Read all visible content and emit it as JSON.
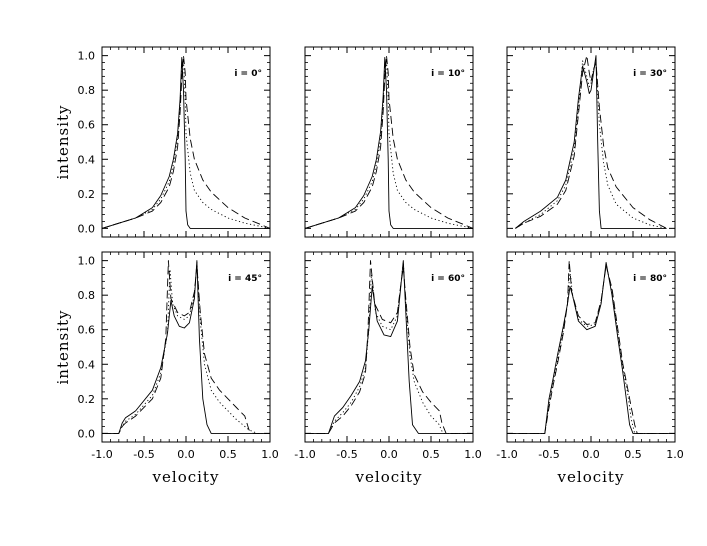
{
  "chart_data": [
    {
      "type": "line",
      "title": "i = 0°",
      "xlabel": "",
      "ylabel": "intensity",
      "xlim": [
        -1.0,
        1.0
      ],
      "ylim": [
        -0.05,
        1.05
      ],
      "x_ticks": [
        "-1.0",
        "-0.5",
        "0.0",
        "0.5",
        "1.0"
      ],
      "y_ticks": [
        "0.0",
        "0.2",
        "0.4",
        "0.6",
        "0.8",
        "1.0"
      ],
      "series": [
        {
          "style": "solid",
          "x": [
            -1.0,
            -0.8,
            -0.6,
            -0.4,
            -0.3,
            -0.2,
            -0.15,
            -0.1,
            -0.07,
            -0.05,
            -0.03,
            -0.01,
            0.0,
            0.02,
            0.05,
            0.1,
            0.3,
            1.0
          ],
          "y": [
            0.0,
            0.03,
            0.06,
            0.12,
            0.19,
            0.3,
            0.4,
            0.55,
            0.75,
            0.99,
            0.8,
            0.4,
            0.1,
            0.02,
            0.0,
            0.0,
            0.0,
            0.0
          ]
        },
        {
          "style": "dotted",
          "x": [
            -1.0,
            -0.8,
            -0.6,
            -0.4,
            -0.3,
            -0.2,
            -0.15,
            -0.1,
            -0.07,
            -0.05,
            -0.03,
            -0.01,
            0.0,
            0.05,
            0.1,
            0.2,
            0.3,
            0.5,
            0.7,
            0.9,
            1.0
          ],
          "y": [
            0.0,
            0.03,
            0.06,
            0.11,
            0.17,
            0.27,
            0.37,
            0.52,
            0.72,
            0.95,
            0.97,
            0.75,
            0.55,
            0.32,
            0.22,
            0.15,
            0.11,
            0.06,
            0.03,
            0.01,
            0.0
          ]
        },
        {
          "style": "dashed",
          "x": [
            -1.0,
            -0.8,
            -0.6,
            -0.4,
            -0.3,
            -0.2,
            -0.15,
            -0.1,
            -0.07,
            -0.05,
            -0.03,
            -0.01,
            0.0,
            0.05,
            0.1,
            0.2,
            0.3,
            0.5,
            0.7,
            0.9,
            1.0
          ],
          "y": [
            0.0,
            0.03,
            0.06,
            0.1,
            0.15,
            0.24,
            0.33,
            0.47,
            0.67,
            0.87,
            1.0,
            0.9,
            0.75,
            0.52,
            0.4,
            0.28,
            0.21,
            0.12,
            0.06,
            0.02,
            0.0
          ]
        }
      ]
    },
    {
      "type": "line",
      "title": "i = 10°",
      "xlabel": "",
      "ylabel": "",
      "xlim": [
        -1.0,
        1.0
      ],
      "ylim": [
        -0.05,
        1.05
      ],
      "x_ticks": [
        "-1.0",
        "-0.5",
        "0.0",
        "0.5",
        "1.0"
      ],
      "y_ticks": [
        "0.0",
        "0.2",
        "0.4",
        "0.6",
        "0.8",
        "1.0"
      ],
      "series": [
        {
          "style": "solid",
          "x": [
            -1.0,
            -0.8,
            -0.6,
            -0.4,
            -0.3,
            -0.2,
            -0.15,
            -0.1,
            -0.07,
            -0.05,
            -0.03,
            -0.01,
            0.0,
            0.02,
            0.05,
            0.1,
            0.3,
            1.0
          ],
          "y": [
            0.0,
            0.03,
            0.06,
            0.12,
            0.19,
            0.3,
            0.4,
            0.56,
            0.76,
            0.99,
            0.8,
            0.4,
            0.1,
            0.02,
            0.0,
            0.0,
            0.0,
            0.0
          ]
        },
        {
          "style": "dotted",
          "x": [
            -1.0,
            -0.8,
            -0.6,
            -0.4,
            -0.3,
            -0.2,
            -0.15,
            -0.1,
            -0.07,
            -0.05,
            -0.03,
            -0.01,
            0.0,
            0.05,
            0.1,
            0.2,
            0.3,
            0.5,
            0.7,
            0.9,
            1.0
          ],
          "y": [
            0.0,
            0.03,
            0.06,
            0.11,
            0.17,
            0.27,
            0.37,
            0.52,
            0.72,
            0.94,
            0.97,
            0.75,
            0.55,
            0.32,
            0.22,
            0.15,
            0.11,
            0.06,
            0.03,
            0.01,
            0.0
          ]
        },
        {
          "style": "dashed",
          "x": [
            -1.0,
            -0.8,
            -0.6,
            -0.4,
            -0.3,
            -0.2,
            -0.15,
            -0.1,
            -0.07,
            -0.05,
            -0.03,
            -0.01,
            0.0,
            0.05,
            0.1,
            0.2,
            0.3,
            0.5,
            0.7,
            0.9,
            1.0
          ],
          "y": [
            0.0,
            0.03,
            0.06,
            0.1,
            0.15,
            0.24,
            0.33,
            0.47,
            0.67,
            0.87,
            1.0,
            0.9,
            0.75,
            0.52,
            0.4,
            0.28,
            0.21,
            0.12,
            0.06,
            0.02,
            0.0
          ]
        }
      ]
    },
    {
      "type": "line",
      "title": "i = 30°",
      "xlabel": "",
      "ylabel": "",
      "xlim": [
        -1.0,
        1.0
      ],
      "ylim": [
        -0.05,
        1.05
      ],
      "x_ticks": [
        "-1.0",
        "-0.5",
        "0.0",
        "0.5",
        "1.0"
      ],
      "y_ticks": [
        "0.0",
        "0.2",
        "0.4",
        "0.6",
        "0.8",
        "1.0"
      ],
      "series": [
        {
          "style": "solid",
          "x": [
            -0.9,
            -0.8,
            -0.6,
            -0.4,
            -0.3,
            -0.2,
            -0.15,
            -0.1,
            -0.05,
            -0.02,
            0.0,
            0.03,
            0.06,
            0.08,
            0.1,
            0.12,
            0.2,
            0.5,
            0.9
          ],
          "y": [
            0.0,
            0.04,
            0.1,
            0.18,
            0.28,
            0.5,
            0.75,
            0.94,
            0.85,
            0.78,
            0.8,
            0.9,
            1.0,
            0.5,
            0.1,
            0.0,
            0.0,
            0.0,
            0.0
          ]
        },
        {
          "style": "dotted",
          "x": [
            -0.9,
            -0.8,
            -0.6,
            -0.4,
            -0.3,
            -0.2,
            -0.15,
            -0.1,
            -0.05,
            -0.02,
            0.0,
            0.03,
            0.06,
            0.1,
            0.15,
            0.2,
            0.3,
            0.5,
            0.7,
            0.9
          ],
          "y": [
            0.0,
            0.03,
            0.08,
            0.16,
            0.25,
            0.46,
            0.7,
            0.97,
            0.88,
            0.82,
            0.84,
            0.92,
            0.96,
            0.6,
            0.38,
            0.25,
            0.14,
            0.06,
            0.02,
            0.0
          ]
        },
        {
          "style": "dashed",
          "x": [
            -0.9,
            -0.8,
            -0.6,
            -0.4,
            -0.3,
            -0.2,
            -0.15,
            -0.1,
            -0.05,
            -0.02,
            0.0,
            0.03,
            0.06,
            0.1,
            0.15,
            0.2,
            0.3,
            0.5,
            0.7,
            0.9
          ],
          "y": [
            0.0,
            0.03,
            0.07,
            0.14,
            0.22,
            0.42,
            0.66,
            0.9,
            1.0,
            0.9,
            0.85,
            0.92,
            0.96,
            0.7,
            0.48,
            0.35,
            0.24,
            0.12,
            0.05,
            0.0
          ]
        }
      ]
    },
    {
      "type": "line",
      "title": "i = 45°",
      "xlabel": "velocity",
      "ylabel": "intensity",
      "xlim": [
        -1.0,
        1.0
      ],
      "ylim": [
        -0.05,
        1.05
      ],
      "x_ticks": [
        "-1.0",
        "-0.5",
        "0.0",
        "0.5",
        "1.0"
      ],
      "y_ticks": [
        "0.0",
        "0.2",
        "0.4",
        "0.6",
        "0.8",
        "1.0"
      ],
      "series": [
        {
          "style": "solid",
          "x": [
            -1.0,
            -0.8,
            -0.76,
            -0.72,
            -0.6,
            -0.4,
            -0.3,
            -0.22,
            -0.18,
            -0.14,
            -0.08,
            -0.02,
            0.04,
            0.1,
            0.13,
            0.16,
            0.2,
            0.25,
            0.3,
            0.5,
            1.0
          ],
          "y": [
            0.0,
            0.0,
            0.06,
            0.09,
            0.13,
            0.25,
            0.38,
            0.58,
            0.77,
            0.68,
            0.62,
            0.61,
            0.64,
            0.78,
            1.0,
            0.55,
            0.2,
            0.05,
            0.0,
            0.0,
            0.0
          ]
        },
        {
          "style": "dotted",
          "x": [
            -1.0,
            -0.8,
            -0.76,
            -0.72,
            -0.6,
            -0.4,
            -0.3,
            -0.22,
            -0.19,
            -0.16,
            -0.1,
            -0.02,
            0.04,
            0.1,
            0.13,
            0.17,
            0.22,
            0.3,
            0.4,
            0.6,
            0.75,
            0.85,
            1.0
          ],
          "y": [
            0.0,
            0.0,
            0.04,
            0.07,
            0.11,
            0.22,
            0.35,
            0.58,
            0.95,
            0.75,
            0.68,
            0.66,
            0.68,
            0.8,
            0.99,
            0.65,
            0.4,
            0.25,
            0.18,
            0.08,
            0.02,
            0.0,
            0.0
          ]
        },
        {
          "style": "dashed",
          "x": [
            -1.0,
            -0.8,
            -0.76,
            -0.72,
            -0.6,
            -0.4,
            -0.3,
            -0.24,
            -0.21,
            -0.18,
            -0.1,
            -0.02,
            0.04,
            0.1,
            0.13,
            0.17,
            0.22,
            0.3,
            0.4,
            0.6,
            0.7,
            0.75,
            0.8,
            1.0
          ],
          "y": [
            0.0,
            0.0,
            0.04,
            0.06,
            0.1,
            0.2,
            0.32,
            0.55,
            1.0,
            0.78,
            0.7,
            0.68,
            0.7,
            0.82,
            0.97,
            0.7,
            0.46,
            0.32,
            0.25,
            0.15,
            0.1,
            0.02,
            0.0,
            0.0
          ]
        }
      ]
    },
    {
      "type": "line",
      "title": "i = 60°",
      "xlabel": "velocity",
      "ylabel": "",
      "xlim": [
        -1.0,
        1.0
      ],
      "ylim": [
        -0.05,
        1.05
      ],
      "x_ticks": [
        "-1.0",
        "-0.5",
        "0.0",
        "0.5",
        "1.0"
      ],
      "y_ticks": [
        "0.0",
        "0.2",
        "0.4",
        "0.6",
        "0.8",
        "1.0"
      ],
      "series": [
        {
          "style": "solid",
          "x": [
            -1.0,
            -0.72,
            -0.65,
            -0.55,
            -0.45,
            -0.35,
            -0.28,
            -0.24,
            -0.2,
            -0.14,
            -0.06,
            0.02,
            0.1,
            0.14,
            0.17,
            0.2,
            0.24,
            0.28,
            0.35,
            1.0
          ],
          "y": [
            0.0,
            0.0,
            0.1,
            0.15,
            0.22,
            0.3,
            0.42,
            0.6,
            0.85,
            0.65,
            0.57,
            0.56,
            0.65,
            0.85,
            1.0,
            0.7,
            0.3,
            0.05,
            0.0,
            0.0
          ]
        },
        {
          "style": "dotted",
          "x": [
            -1.0,
            -0.72,
            -0.65,
            -0.55,
            -0.45,
            -0.35,
            -0.28,
            -0.24,
            -0.21,
            -0.16,
            -0.08,
            0.02,
            0.1,
            0.14,
            0.17,
            0.2,
            0.25,
            0.3,
            0.4,
            0.5,
            0.6,
            0.62,
            0.65,
            1.0
          ],
          "y": [
            0.0,
            0.0,
            0.07,
            0.12,
            0.18,
            0.27,
            0.38,
            0.6,
            0.92,
            0.7,
            0.62,
            0.6,
            0.68,
            0.86,
            0.99,
            0.75,
            0.45,
            0.3,
            0.18,
            0.1,
            0.05,
            0.02,
            0.0,
            0.0
          ]
        },
        {
          "style": "dashed",
          "x": [
            -1.0,
            -0.72,
            -0.65,
            -0.55,
            -0.45,
            -0.35,
            -0.28,
            -0.25,
            -0.22,
            -0.17,
            -0.08,
            0.02,
            0.1,
            0.14,
            0.17,
            0.2,
            0.25,
            0.3,
            0.4,
            0.5,
            0.6,
            0.63,
            0.68,
            1.0
          ],
          "y": [
            0.0,
            0.0,
            0.06,
            0.1,
            0.16,
            0.24,
            0.35,
            0.6,
            1.0,
            0.75,
            0.66,
            0.64,
            0.7,
            0.86,
            0.96,
            0.78,
            0.5,
            0.34,
            0.24,
            0.18,
            0.13,
            0.06,
            0.0,
            0.0
          ]
        }
      ]
    },
    {
      "type": "line",
      "title": "i = 80°",
      "xlabel": "velocity",
      "ylabel": "",
      "xlim": [
        -1.0,
        1.0
      ],
      "ylim": [
        -0.05,
        1.05
      ],
      "x_ticks": [
        "-1.0",
        "-0.5",
        "0.0",
        "0.5",
        "1.0"
      ],
      "y_ticks": [
        "0.0",
        "0.2",
        "0.4",
        "0.6",
        "0.8",
        "1.0"
      ],
      "series": [
        {
          "style": "solid",
          "x": [
            -1.0,
            -0.55,
            -0.5,
            -0.45,
            -0.4,
            -0.33,
            -0.28,
            -0.25,
            -0.22,
            -0.15,
            -0.05,
            0.05,
            0.12,
            0.18,
            0.25,
            0.32,
            0.38,
            0.42,
            0.46,
            0.5,
            1.0
          ],
          "y": [
            0.0,
            0.0,
            0.2,
            0.32,
            0.45,
            0.62,
            0.75,
            0.85,
            0.8,
            0.65,
            0.6,
            0.62,
            0.75,
            0.99,
            0.8,
            0.55,
            0.35,
            0.2,
            0.05,
            0.0,
            0.0
          ]
        },
        {
          "style": "dotted",
          "x": [
            -1.0,
            -0.55,
            -0.5,
            -0.45,
            -0.4,
            -0.33,
            -0.28,
            -0.25,
            -0.22,
            -0.15,
            -0.05,
            0.05,
            0.12,
            0.18,
            0.25,
            0.32,
            0.38,
            0.44,
            0.48,
            0.52,
            1.0
          ],
          "y": [
            0.0,
            0.0,
            0.17,
            0.3,
            0.42,
            0.6,
            0.75,
            0.95,
            0.8,
            0.66,
            0.62,
            0.63,
            0.76,
            0.98,
            0.82,
            0.58,
            0.38,
            0.22,
            0.08,
            0.0,
            0.0
          ]
        },
        {
          "style": "dashed",
          "x": [
            -1.0,
            -0.55,
            -0.5,
            -0.45,
            -0.4,
            -0.33,
            -0.28,
            -0.26,
            -0.23,
            -0.15,
            -0.05,
            0.05,
            0.12,
            0.18,
            0.25,
            0.32,
            0.38,
            0.44,
            0.48,
            0.52,
            0.55,
            1.0
          ],
          "y": [
            0.0,
            0.0,
            0.15,
            0.28,
            0.4,
            0.58,
            0.75,
            1.0,
            0.82,
            0.68,
            0.63,
            0.64,
            0.77,
            0.97,
            0.84,
            0.6,
            0.4,
            0.25,
            0.15,
            0.05,
            0.0,
            0.0
          ]
        }
      ]
    }
  ]
}
